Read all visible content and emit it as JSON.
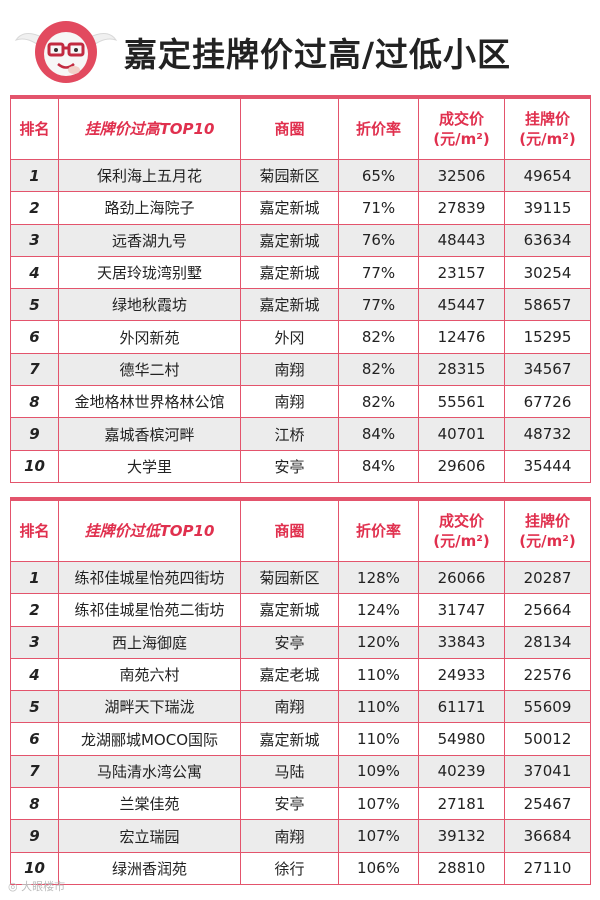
{
  "header": {
    "title": "嘉定挂牌价过高/过低小区"
  },
  "colors": {
    "accent": "#e3546c",
    "header_text": "#e0304e",
    "stripe": "#ececec"
  },
  "table_high": {
    "col_rank": "排名",
    "col_name": "挂牌价过高TOP10",
    "col_area": "商圈",
    "col_ratio": "折价率",
    "col_deal": "成交价",
    "col_list": "挂牌价",
    "unit": "(元/m²)",
    "rows": [
      {
        "rank": "1",
        "name": "保利海上五月花",
        "area": "菊园新区",
        "ratio": "65%",
        "deal": "32506",
        "list": "49654"
      },
      {
        "rank": "2",
        "name": "路劲上海院子",
        "area": "嘉定新城",
        "ratio": "71%",
        "deal": "27839",
        "list": "39115"
      },
      {
        "rank": "3",
        "name": "远香湖九号",
        "area": "嘉定新城",
        "ratio": "76%",
        "deal": "48443",
        "list": "63634"
      },
      {
        "rank": "4",
        "name": "天居玲珑湾别墅",
        "area": "嘉定新城",
        "ratio": "77%",
        "deal": "23157",
        "list": "30254"
      },
      {
        "rank": "5",
        "name": "绿地秋霞坊",
        "area": "嘉定新城",
        "ratio": "77%",
        "deal": "45447",
        "list": "58657"
      },
      {
        "rank": "6",
        "name": "外冈新苑",
        "area": "外冈",
        "ratio": "82%",
        "deal": "12476",
        "list": "15295"
      },
      {
        "rank": "7",
        "name": "德华二村",
        "area": "南翔",
        "ratio": "82%",
        "deal": "28315",
        "list": "34567"
      },
      {
        "rank": "8",
        "name": "金地格林世界格林公馆",
        "area": "南翔",
        "ratio": "82%",
        "deal": "55561",
        "list": "67726"
      },
      {
        "rank": "9",
        "name": "嘉城香槟河畔",
        "area": "江桥",
        "ratio": "84%",
        "deal": "40701",
        "list": "48732"
      },
      {
        "rank": "10",
        "name": "大学里",
        "area": "安亭",
        "ratio": "84%",
        "deal": "29606",
        "list": "35444"
      }
    ]
  },
  "table_low": {
    "col_rank": "排名",
    "col_name": "挂牌价过低TOP10",
    "col_area": "商圈",
    "col_ratio": "折价率",
    "col_deal": "成交价",
    "col_list": "挂牌价",
    "unit": "(元/m²)",
    "rows": [
      {
        "rank": "1",
        "name": "练祁佳城星怡苑四街坊",
        "area": "菊园新区",
        "ratio": "128%",
        "deal": "26066",
        "list": "20287"
      },
      {
        "rank": "2",
        "name": "练祁佳城星怡苑二街坊",
        "area": "嘉定新城",
        "ratio": "124%",
        "deal": "31747",
        "list": "25664"
      },
      {
        "rank": "3",
        "name": "西上海御庭",
        "area": "安亭",
        "ratio": "120%",
        "deal": "33843",
        "list": "28134"
      },
      {
        "rank": "4",
        "name": "南苑六村",
        "area": "嘉定老城",
        "ratio": "110%",
        "deal": "24933",
        "list": "22576"
      },
      {
        "rank": "5",
        "name": "湖畔天下瑞泷",
        "area": "南翔",
        "ratio": "110%",
        "deal": "61171",
        "list": "55609"
      },
      {
        "rank": "6",
        "name": "龙湖郦城MOCO国际",
        "area": "嘉定新城",
        "ratio": "110%",
        "deal": "54980",
        "list": "50012"
      },
      {
        "rank": "7",
        "name": "马陆清水湾公寓",
        "area": "马陆",
        "ratio": "109%",
        "deal": "40239",
        "list": "37041"
      },
      {
        "rank": "8",
        "name": "兰棠佳苑",
        "area": "安亭",
        "ratio": "107%",
        "deal": "27181",
        "list": "25467"
      },
      {
        "rank": "9",
        "name": "宏立瑞园",
        "area": "南翔",
        "ratio": "107%",
        "deal": "39132",
        "list": "36684"
      },
      {
        "rank": "10",
        "name": "绿洲香润苑",
        "area": "徐行",
        "ratio": "106%",
        "deal": "28810",
        "list": "27110"
      }
    ]
  },
  "watermark": "大眼楼市"
}
